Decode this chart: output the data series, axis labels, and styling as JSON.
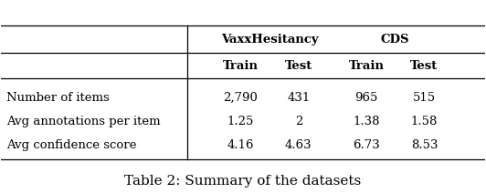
{
  "title": "Table 2: Summary of the datasets",
  "group_headers": [
    "VaxxHesitancy",
    "CDS"
  ],
  "col_headers": [
    "Train",
    "Test",
    "Train",
    "Test"
  ],
  "row_labels": [
    "Number of items",
    "Avg annotations per item",
    "Avg confidence score"
  ],
  "data": [
    [
      "2,790",
      "431",
      "965",
      "515"
    ],
    [
      "1.25",
      "2",
      "1.38",
      "1.58"
    ],
    [
      "4.16",
      "4.63",
      "6.73",
      "8.53"
    ]
  ],
  "bg_color": "#ffffff",
  "text_color": "#000000",
  "font_size": 9.5,
  "title_font_size": 11
}
